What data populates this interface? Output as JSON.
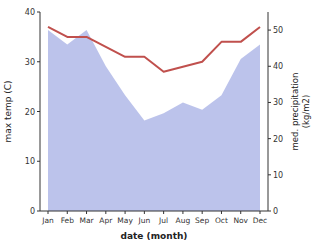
{
  "chart_data": {
    "type": "line",
    "categories": [
      "Jan",
      "Feb",
      "Mar",
      "Apr",
      "May",
      "Jun",
      "Jul",
      "Aug",
      "Sep",
      "Oct",
      "Nov",
      "Dec"
    ],
    "series": [
      {
        "type": "area",
        "color": "#b0b8e8",
        "axis": "y2",
        "values": [
          50,
          46,
          50,
          40,
          32,
          25,
          27,
          30,
          28,
          32,
          42,
          46
        ]
      },
      {
        "type": "line",
        "color": "#c0504d",
        "values": [
          37,
          35,
          35,
          33,
          31,
          31,
          28,
          29,
          30,
          34,
          34,
          37
        ]
      }
    ],
    "x_label": "date (month)",
    "y_label": "max temp (C)",
    "y2_label": "med. precipitation\n(kg/m2)",
    "ylim": [
      0,
      40
    ],
    "yticks": [
      0,
      10,
      20,
      30,
      40
    ],
    "y2lim": [
      0,
      55
    ],
    "y2ticks": [
      0,
      10,
      20,
      30,
      40,
      50
    ],
    "grid": false
  }
}
